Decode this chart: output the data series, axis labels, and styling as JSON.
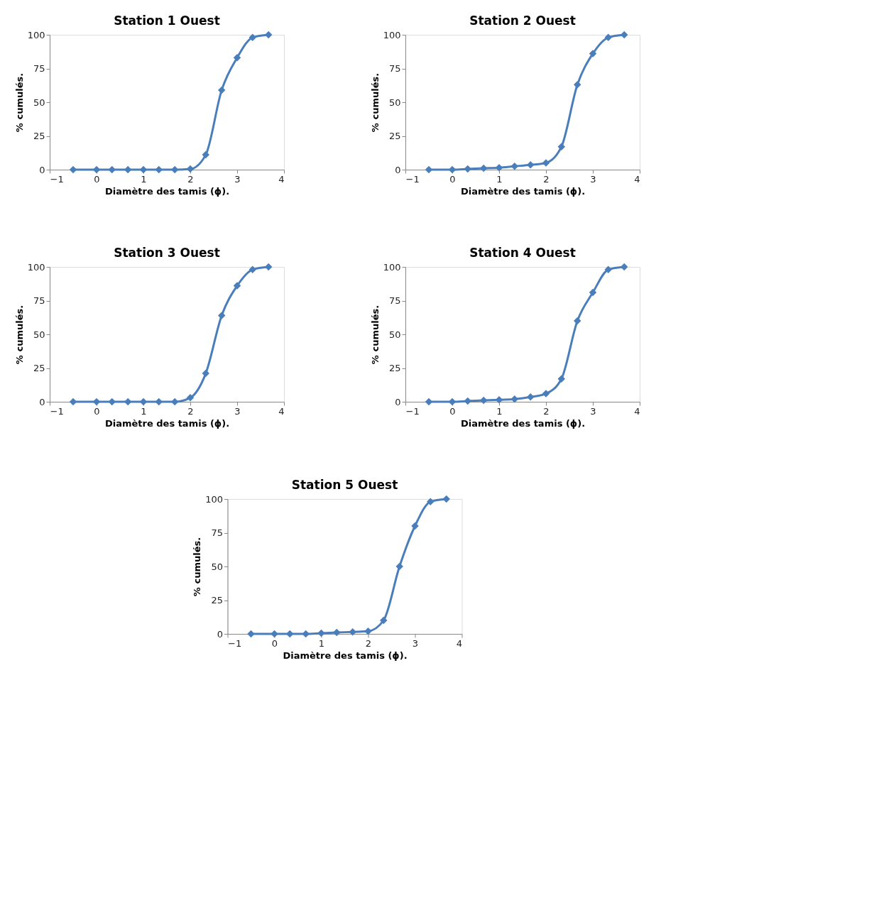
{
  "chart_data": [
    {
      "type": "line",
      "title": "Station 1 Ouest",
      "xlabel": "Diamètre des tamis (ɸ).",
      "ylabel": "% cumulés.",
      "x": [
        -0.5,
        0,
        0.33,
        0.67,
        1,
        1.33,
        1.67,
        2,
        2.33,
        2.67,
        3,
        3.33,
        3.67
      ],
      "series": [
        {
          "color": "#4a7ebb",
          "values": [
            0,
            0,
            0,
            0,
            0,
            0,
            0,
            0.5,
            11,
            59,
            83,
            98,
            100
          ]
        }
      ],
      "xlim": [
        -1,
        4
      ],
      "xticks": [
        -1,
        0,
        1,
        2,
        3,
        4
      ],
      "ylim": [
        0,
        100
      ],
      "yticks": [
        0,
        25,
        50,
        75,
        100
      ],
      "marker": "diamond",
      "line_style": "solid",
      "grid": false
    },
    {
      "type": "line",
      "title": "Station 2 Ouest",
      "xlabel": "Diamètre des tamis (ɸ).",
      "ylabel": "% cumulés.",
      "x": [
        -0.5,
        0,
        0.33,
        0.67,
        1,
        1.33,
        1.67,
        2,
        2.33,
        2.67,
        3,
        3.33,
        3.67
      ],
      "series": [
        {
          "color": "#4a7ebb",
          "values": [
            0,
            0,
            0.5,
            1,
            1.5,
            2.5,
            3.5,
            5,
            17,
            63,
            86,
            98,
            100
          ]
        }
      ],
      "xlim": [
        -1,
        4
      ],
      "xticks": [
        -1,
        0,
        1,
        2,
        3,
        4
      ],
      "ylim": [
        0,
        100
      ],
      "yticks": [
        0,
        25,
        50,
        75,
        100
      ],
      "marker": "diamond",
      "line_style": "solid",
      "grid": false
    },
    {
      "type": "line",
      "title": "Station 3 Ouest",
      "xlabel": "Diamètre des tamis (ɸ).",
      "ylabel": "% cumulés.",
      "x": [
        -0.5,
        0,
        0.33,
        0.67,
        1,
        1.33,
        1.67,
        2,
        2.33,
        2.67,
        3,
        3.33,
        3.67
      ],
      "series": [
        {
          "color": "#4a7ebb",
          "values": [
            0,
            0,
            0,
            0,
            0,
            0,
            0,
            3,
            21,
            64,
            86,
            98,
            100
          ]
        }
      ],
      "xlim": [
        -1,
        4
      ],
      "xticks": [
        -1,
        0,
        1,
        2,
        3,
        4
      ],
      "ylim": [
        0,
        100
      ],
      "yticks": [
        0,
        25,
        50,
        75,
        100
      ],
      "marker": "diamond",
      "line_style": "solid",
      "grid": false
    },
    {
      "type": "line",
      "title": "Station 4 Ouest",
      "xlabel": "Diamètre des tamis (ɸ).",
      "ylabel": "% cumulés.",
      "x": [
        -0.5,
        0,
        0.33,
        0.67,
        1,
        1.33,
        1.67,
        2,
        2.33,
        2.67,
        3,
        3.33,
        3.67
      ],
      "series": [
        {
          "color": "#4a7ebb",
          "values": [
            0,
            0,
            0.5,
            1,
            1.5,
            2,
            3.5,
            6,
            17,
            60,
            81,
            98,
            100
          ]
        }
      ],
      "xlim": [
        -1,
        4
      ],
      "xticks": [
        -1,
        0,
        1,
        2,
        3,
        4
      ],
      "ylim": [
        0,
        100
      ],
      "yticks": [
        0,
        25,
        50,
        75,
        100
      ],
      "marker": "diamond",
      "line_style": "solid",
      "grid": false
    },
    {
      "type": "line",
      "title": "Station 5 Ouest",
      "xlabel": "Diamètre des tamis (ɸ).",
      "ylabel": "% cumulés.",
      "x": [
        -0.5,
        0,
        0.33,
        0.67,
        1,
        1.33,
        1.67,
        2,
        2.33,
        2.67,
        3,
        3.33,
        3.67
      ],
      "series": [
        {
          "color": "#4a7ebb",
          "values": [
            0,
            0,
            0,
            0,
            0.5,
            1,
            1.5,
            2,
            10,
            50,
            80,
            98,
            100
          ]
        }
      ],
      "xlim": [
        -1,
        4
      ],
      "xticks": [
        -1,
        0,
        1,
        2,
        3,
        4
      ],
      "ylim": [
        0,
        100
      ],
      "yticks": [
        0,
        25,
        50,
        75,
        100
      ],
      "marker": "diamond",
      "line_style": "solid",
      "grid": false
    }
  ]
}
